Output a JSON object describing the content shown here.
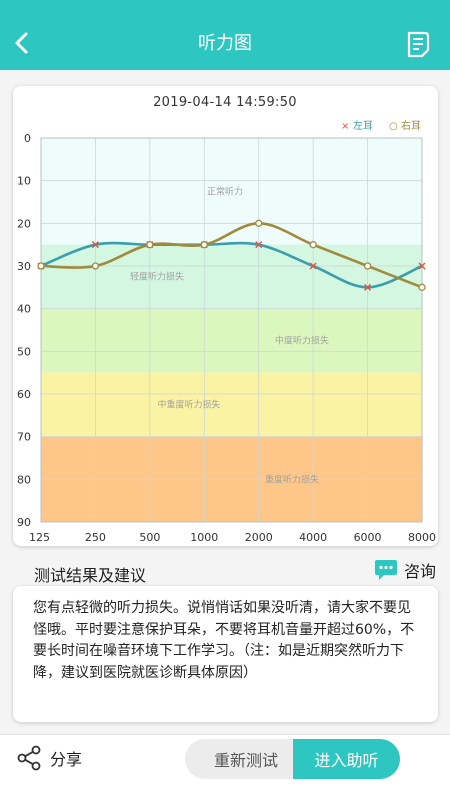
{
  "header": {
    "title": "听力图"
  },
  "chart": {
    "datetime": "2019-04-14 14:59:50",
    "legend": [
      {
        "symbol": "×",
        "label": "左耳",
        "color": "#e0523e"
      },
      {
        "symbol": "○",
        "label": "右耳",
        "color": "#a08a3c"
      }
    ],
    "zones": [
      {
        "label": "正常听力",
        "from": 0,
        "to": 25,
        "color": "#eefcfb"
      },
      {
        "label": "轻度听力损失",
        "from": 25,
        "to": 40,
        "color": "#d3f7e0"
      },
      {
        "label": "中度听力损失",
        "from": 40,
        "to": 55,
        "color": "#dcf7be"
      },
      {
        "label": "中重度听力损失",
        "from": 55,
        "to": 70,
        "color": "#fbf3a4"
      },
      {
        "label": "重度听力损失",
        "from": 70,
        "to": 90,
        "color": "#fec78a"
      }
    ]
  },
  "chart_data": {
    "type": "line",
    "categories": [
      "125",
      "250",
      "500",
      "1000",
      "2000",
      "4000",
      "6000",
      "8000"
    ],
    "y_ticks": [
      "0",
      "10",
      "20",
      "30",
      "40",
      "50",
      "60",
      "70",
      "80",
      "90"
    ],
    "ylim": [
      0,
      90
    ],
    "y_inverted": true,
    "grid": true,
    "legend_position": "top-right",
    "series": [
      {
        "name": "左耳",
        "values": [
          30,
          25,
          25,
          25,
          25,
          30,
          35,
          30
        ],
        "color": "#3a9eac",
        "marker": "×",
        "marker_color": "#e0523e"
      },
      {
        "name": "右耳",
        "values": [
          30,
          30,
          25,
          25,
          20,
          25,
          30,
          35
        ],
        "color": "#a08a3c",
        "marker": "○",
        "marker_color": "#a08a3c"
      }
    ]
  },
  "results": {
    "title": "测试结果及建议",
    "consult_label": "咨询",
    "advice": "您有点轻微的听力损失。说悄悄话如果没听清，请大家不要见怪哦。平时要注意保护耳朵，不要将耳机音量开超过60%，不要长时间在噪音环境下工作学习。（注：如是近期突然听力下降，建议到医院就医诊断具体原因）"
  },
  "footer": {
    "share_label": "分享",
    "retest_label": "重新测试",
    "enter_label": "进入助听"
  }
}
